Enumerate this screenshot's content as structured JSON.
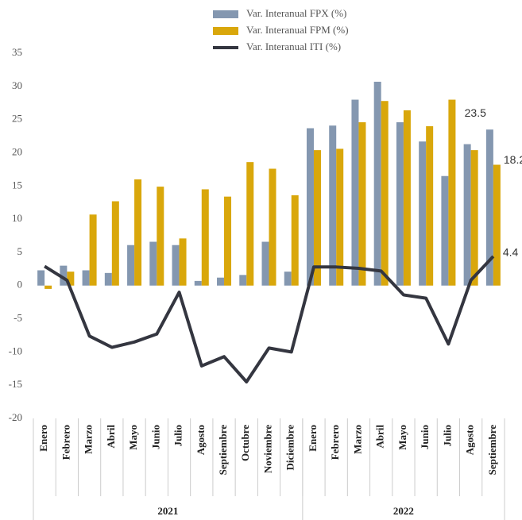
{
  "chart_data": {
    "type": "bar_line",
    "categories": [
      "Enero",
      "Febrero",
      "Marzo",
      "Abril",
      "Mayo",
      "Junio",
      "Julio",
      "Agosto",
      "Septiembre",
      "Octubre",
      "Noviembre",
      "Diciembre",
      "Enero",
      "Febrero",
      "Marzo",
      "Abril",
      "Mayo",
      "Junio",
      "Julio",
      "Agosto",
      "Septiembre"
    ],
    "category_groups": [
      {
        "label": "2021",
        "count": 12
      },
      {
        "label": "2022",
        "count": 9
      }
    ],
    "series": [
      {
        "name": "Var. Interanual FPX (%)",
        "type": "bar",
        "color": "#8497b0",
        "values": [
          2.3,
          3.0,
          2.3,
          1.9,
          6.1,
          6.6,
          6.1,
          0.7,
          1.2,
          1.6,
          6.6,
          2.1,
          23.7,
          24.1,
          28.0,
          30.7,
          24.6,
          21.7,
          16.5,
          21.3,
          23.5
        ]
      },
      {
        "name": "Var. Interanual FPM (%)",
        "type": "bar",
        "color": "#d9a70b",
        "values": [
          -0.5,
          2.1,
          10.7,
          12.7,
          16.0,
          14.9,
          7.1,
          14.5,
          13.4,
          18.6,
          17.6,
          13.6,
          20.4,
          20.6,
          24.6,
          27.8,
          26.4,
          24.0,
          28.0,
          20.4,
          18.2
        ]
      },
      {
        "name": "Var. Interanual ITI (%)",
        "type": "line",
        "color": "#343640",
        "values": [
          2.9,
          0.8,
          -7.6,
          -9.3,
          -8.5,
          -7.3,
          -1.0,
          -12.1,
          -10.7,
          -14.5,
          -9.4,
          -10.0,
          2.8,
          2.8,
          2.6,
          2.2,
          -1.4,
          -1.9,
          -8.8,
          0.8,
          4.4
        ]
      }
    ],
    "labeled_points": [
      20
    ],
    "ylim": [
      -20,
      35
    ],
    "yticks": [
      -20,
      -15,
      -10,
      -5,
      0,
      5,
      10,
      15,
      20,
      25,
      30,
      35
    ],
    "grid": false,
    "legend": "top"
  }
}
